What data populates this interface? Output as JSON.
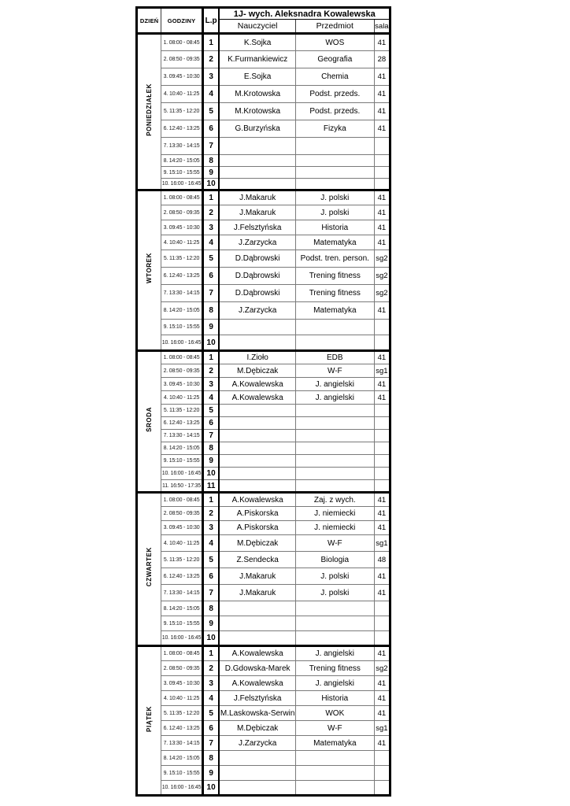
{
  "title": "1J- wych. Aleksnadra Kowalewska",
  "columns": {
    "day": "DZIEŃ",
    "hours": "GODZINY",
    "lp": "L.p",
    "teacher": "Nauczyciel",
    "subject": "Przedmiot",
    "room": "sala"
  },
  "days": [
    {
      "name": "PONIEDZIAŁEK",
      "rows": [
        {
          "time": "1. 08:00 - 08:45",
          "lp": "1",
          "teacher": "K.Sojka",
          "subject": "WOS",
          "room": "41"
        },
        {
          "time": "2. 08:50 - 09:35",
          "lp": "2",
          "teacher": "K.Furmankiewicz",
          "subject": "Geografia",
          "room": "28"
        },
        {
          "time": "3. 09:45 - 10:30",
          "lp": "3",
          "teacher": "E.Sojka",
          "subject": "Chemia",
          "room": "41"
        },
        {
          "time": "4. 10:40 - 11:25",
          "lp": "4",
          "teacher": "M.Krotowska",
          "subject": "Podst. przeds.",
          "room": "41"
        },
        {
          "time": "5. 11:35 - 12:20",
          "lp": "5",
          "teacher": "M.Krotowska",
          "subject": "Podst. przeds.",
          "room": "41"
        },
        {
          "time": "6. 12:40 - 13:25",
          "lp": "6",
          "teacher": "G.Burzyńska",
          "subject": "Fizyka",
          "room": "41"
        },
        {
          "time": "7. 13:30 - 14:15",
          "lp": "7",
          "teacher": "",
          "subject": "",
          "room": ""
        },
        {
          "time": "8. 14:20 - 15:05",
          "lp": "8",
          "teacher": "",
          "subject": "",
          "room": ""
        },
        {
          "time": "9. 15:10 - 15:55",
          "lp": "9",
          "teacher": "",
          "subject": "",
          "room": ""
        },
        {
          "time": "10. 16:00 - 16:45",
          "lp": "10",
          "teacher": "",
          "subject": "",
          "room": ""
        }
      ]
    },
    {
      "name": "WTOREK",
      "rows": [
        {
          "time": "1. 08:00 - 08:45",
          "lp": "1",
          "teacher": "J.Makaruk",
          "subject": "J. polski",
          "room": "41"
        },
        {
          "time": "2. 08:50 - 09:35",
          "lp": "2",
          "teacher": "J.Makaruk",
          "subject": "J. polski",
          "room": "41"
        },
        {
          "time": "3. 09:45 - 10:30",
          "lp": "3",
          "teacher": "J.Felsztyńska",
          "subject": "Historia",
          "room": "41"
        },
        {
          "time": "4. 10:40 - 11:25",
          "lp": "4",
          "teacher": "J.Zarzycka",
          "subject": "Matematyka",
          "room": "41"
        },
        {
          "time": "5. 11:35 - 12:20",
          "lp": "5",
          "teacher": "D.Dąbrowski",
          "subject": "Podst. tren. person.",
          "room": "sg2"
        },
        {
          "time": "6. 12:40 - 13:25",
          "lp": "6",
          "teacher": "D.Dąbrowski",
          "subject": "Trening fitness",
          "room": "sg2"
        },
        {
          "time": "7. 13:30 - 14:15",
          "lp": "7",
          "teacher": "D.Dąbrowski",
          "subject": "Trening fitness",
          "room": "sg2"
        },
        {
          "time": "8. 14:20 - 15:05",
          "lp": "8",
          "teacher": "J.Zarzycka",
          "subject": "Matematyka",
          "room": "41"
        },
        {
          "time": "9. 15:10 - 15:55",
          "lp": "9",
          "teacher": "",
          "subject": "",
          "room": ""
        },
        {
          "time": "10. 16:00 - 16:45",
          "lp": "10",
          "teacher": "",
          "subject": "",
          "room": ""
        }
      ]
    },
    {
      "name": "ŚRODA",
      "rows": [
        {
          "time": "1. 08:00 - 08:45",
          "lp": "1",
          "teacher": "I.Zioło",
          "subject": "EDB",
          "room": "41"
        },
        {
          "time": "2. 08:50 - 09:35",
          "lp": "2",
          "teacher": "M.Dębiczak",
          "subject": "W-F",
          "room": "sg1"
        },
        {
          "time": "3. 09:45 - 10:30",
          "lp": "3",
          "teacher": "A.Kowalewska",
          "subject": "J. angielski",
          "room": "41"
        },
        {
          "time": "4. 10:40 - 11:25",
          "lp": "4",
          "teacher": "A.Kowalewska",
          "subject": "J. angielski",
          "room": "41"
        },
        {
          "time": "5. 11:35 - 12:20",
          "lp": "5",
          "teacher": "",
          "subject": "",
          "room": ""
        },
        {
          "time": "6. 12:40 - 13:25",
          "lp": "6",
          "teacher": "",
          "subject": "",
          "room": ""
        },
        {
          "time": "7. 13:30 - 14:15",
          "lp": "7",
          "teacher": "",
          "subject": "",
          "room": ""
        },
        {
          "time": "8. 14:20 - 15:05",
          "lp": "8",
          "teacher": "",
          "subject": "",
          "room": ""
        },
        {
          "time": "9. 15:10 - 15:55",
          "lp": "9",
          "teacher": "",
          "subject": "",
          "room": ""
        },
        {
          "time": "10. 16:00 - 16:45",
          "lp": "10",
          "teacher": "",
          "subject": "",
          "room": ""
        },
        {
          "time": "11. 16:50 - 17:35",
          "lp": "11",
          "teacher": "",
          "subject": "",
          "room": ""
        }
      ]
    },
    {
      "name": "CZWARTEK",
      "rows": [
        {
          "time": "1. 08:00 - 08:45",
          "lp": "1",
          "teacher": "A.Kowalewska",
          "subject": "Zaj. z wych.",
          "room": "41"
        },
        {
          "time": "2. 08:50 - 09:35",
          "lp": "2",
          "teacher": "A.Piskorska",
          "subject": "J. niemiecki",
          "room": "41"
        },
        {
          "time": "3. 09:45 - 10:30",
          "lp": "3",
          "teacher": "A.Piskorska",
          "subject": "J. niemiecki",
          "room": "41"
        },
        {
          "time": "4. 10:40 - 11:25",
          "lp": "4",
          "teacher": "M.Dębiczak",
          "subject": "W-F",
          "room": "sg1"
        },
        {
          "time": "5. 11:35 - 12:20",
          "lp": "5",
          "teacher": "Z.Sendecka",
          "subject": "Biologia",
          "room": "48"
        },
        {
          "time": "6. 12:40 - 13:25",
          "lp": "6",
          "teacher": "J.Makaruk",
          "subject": "J. polski",
          "room": "41"
        },
        {
          "time": "7. 13:30 - 14:15",
          "lp": "7",
          "teacher": "J.Makaruk",
          "subject": "J. polski",
          "room": "41"
        },
        {
          "time": "8. 14:20 - 15:05",
          "lp": "8",
          "teacher": "",
          "subject": "",
          "room": ""
        },
        {
          "time": "9. 15:10 - 15:55",
          "lp": "9",
          "teacher": "",
          "subject": "",
          "room": ""
        },
        {
          "time": "10. 16:00 - 16:45",
          "lp": "10",
          "teacher": "",
          "subject": "",
          "room": ""
        }
      ]
    },
    {
      "name": "PIĄTEK",
      "rows": [
        {
          "time": "1. 08:00 - 08:45",
          "lp": "1",
          "teacher": "A.Kowalewska",
          "subject": "J. angielski",
          "room": "41"
        },
        {
          "time": "2. 08:50 - 09:35",
          "lp": "2",
          "teacher": "D.Gdowska-Marek",
          "subject": "Trening fitness",
          "room": "sg2"
        },
        {
          "time": "3. 09:45 - 10:30",
          "lp": "3",
          "teacher": "A.Kowalewska",
          "subject": "J. angielski",
          "room": "41"
        },
        {
          "time": "4. 10:40 - 11:25",
          "lp": "4",
          "teacher": "J.Felsztyńska",
          "subject": "Historia",
          "room": "41"
        },
        {
          "time": "5. 11:35 - 12:20",
          "lp": "5",
          "teacher": "M.Laskowska-Serwin",
          "subject": "WOK",
          "room": "41"
        },
        {
          "time": "6. 12:40 - 13:25",
          "lp": "6",
          "teacher": "M.Dębiczak",
          "subject": "W-F",
          "room": "sg1"
        },
        {
          "time": "7. 13:30 - 14:15",
          "lp": "7",
          "teacher": "J.Zarzycka",
          "subject": "Matematyka",
          "room": "41"
        },
        {
          "time": "8. 14:20 - 15:05",
          "lp": "8",
          "teacher": "",
          "subject": "",
          "room": ""
        },
        {
          "time": "9. 15:10 - 15:55",
          "lp": "9",
          "teacher": "",
          "subject": "",
          "room": ""
        },
        {
          "time": "10. 16:00 - 16:45",
          "lp": "10",
          "teacher": "",
          "subject": "",
          "room": ""
        }
      ]
    }
  ]
}
